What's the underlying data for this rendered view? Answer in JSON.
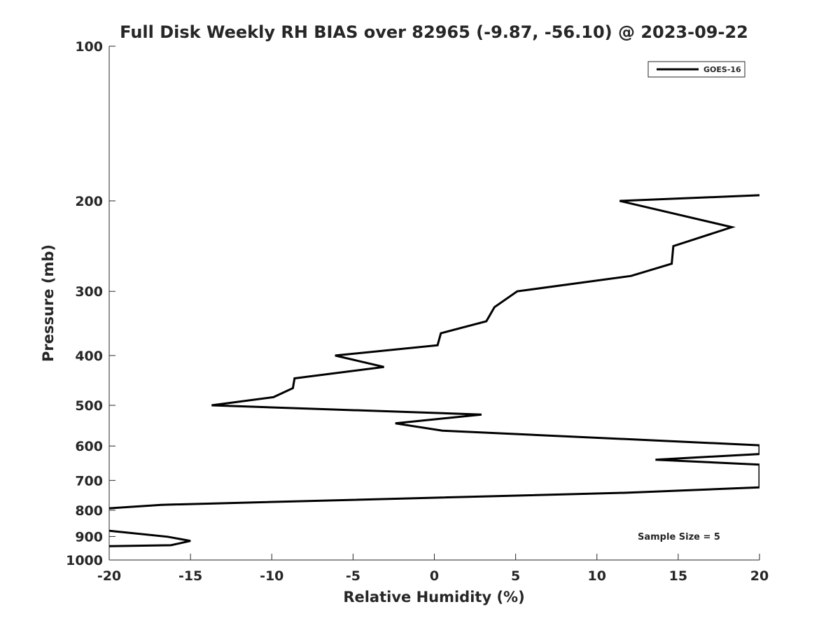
{
  "chart_data": {
    "type": "line",
    "title": "Full Disk Weekly RH BIAS over 82965 (-9.87, -56.10) @ 2023-09-22",
    "xlabel": "Relative Humidity (%)",
    "ylabel": "Pressure (mb)",
    "xlim": [
      -20,
      20
    ],
    "ylim": [
      100,
      1000
    ],
    "yscale": "log",
    "y_reversed": true,
    "grid": false,
    "legend_position": "top-right",
    "xticks": [
      -20,
      -15,
      -10,
      -5,
      0,
      5,
      10,
      15,
      20
    ],
    "xtick_labels": [
      "-20",
      "-15",
      "-10",
      "-5",
      "0",
      "5",
      "10",
      "15",
      "20"
    ],
    "yticks": [
      100,
      200,
      300,
      400,
      500,
      600,
      700,
      800,
      900,
      1000
    ],
    "ytick_labels": [
      "100",
      "200",
      "300",
      "400",
      "500",
      "600",
      "700",
      "800",
      "900",
      "1000"
    ],
    "series": [
      {
        "name": "GOES-16",
        "color": "#000000",
        "x": [
          20,
          11.4,
          18.3,
          14.7,
          14.6,
          12.1,
          5.1,
          3.7,
          3.2,
          0.4,
          0.2,
          -6.1,
          -3.1,
          -8.6,
          -8.7,
          -9.9,
          -13.7,
          2.9,
          -2.4,
          0.5,
          20,
          20,
          13.6,
          20,
          20,
          11.7,
          -16.8,
          -20
        ],
        "y": [
          195,
          200,
          225,
          245,
          265,
          280,
          300,
          322,
          343,
          362,
          382,
          400,
          421,
          443,
          463,
          482,
          500,
          521,
          542,
          560,
          598,
          622,
          638,
          652,
          722,
          740,
          781,
          793
        ]
      },
      {
        "name": "",
        "color": "#000000",
        "x": [
          -20,
          -16.4,
          -15.0,
          -16.2,
          -20
        ],
        "y": [
          877,
          901,
          918,
          936,
          940
        ]
      }
    ],
    "annotations": [
      "Sample Size = 5"
    ]
  }
}
